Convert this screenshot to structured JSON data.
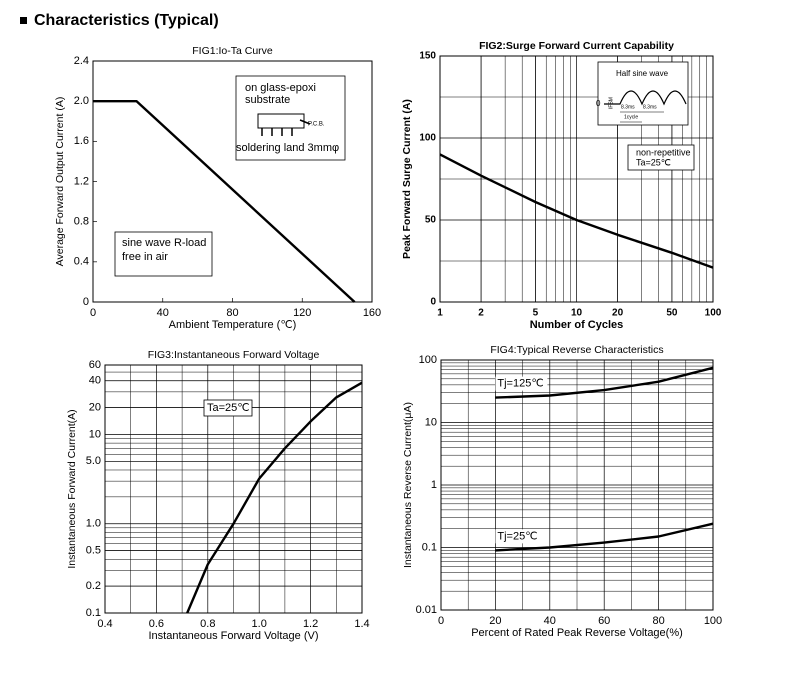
{
  "title": "Characteristics (Typical)",
  "chart_data": [
    {
      "type": "line",
      "title": "FIG1:Io-Ta Curve",
      "x_label": "Ambient Temperature (℃)",
      "y_label": "Average Forward Output Current (A)",
      "x": [
        0,
        25,
        150
      ],
      "values": [
        2,
        2,
        0
      ],
      "color": "#000000",
      "xlim": [
        0,
        160
      ],
      "xticks": [
        0,
        40,
        80,
        120,
        160
      ],
      "ylim": [
        0,
        2.4
      ],
      "yticks": [
        0,
        0.4,
        0.8,
        1.2,
        1.6,
        {
          "value": 2,
          "label": "2.0"
        },
        2.4
      ],
      "grid": false,
      "annotations": [
        "on glass-epoxi",
        "substrate",
        "P.C.B.",
        "soldering land 3mmφ",
        "sine wave R-load",
        "free in air"
      ]
    },
    {
      "type": "line",
      "title": "FIG2:Surge Forward Current Capability",
      "x_label": "Number of Cycles",
      "y_label": "Peak Forward Surge Current (A)",
      "x": [
        1,
        2,
        5,
        10,
        20,
        50,
        100
      ],
      "values": [
        90,
        77,
        61,
        50,
        41,
        30,
        21
      ],
      "color": "#000000",
      "xscale": "log",
      "xlim": [
        1,
        100
      ],
      "xticks": [
        1,
        2,
        5,
        10,
        20,
        50,
        100
      ],
      "ylim": [
        0,
        150
      ],
      "yticks": [
        0,
        50,
        100,
        150
      ],
      "grid": true,
      "annotations": [
        "Half sine wave",
        "IFSM",
        "0",
        "8.3ms",
        "8.3ms",
        "1cycle",
        "non-repetitive",
        "Ta=25℃"
      ]
    },
    {
      "type": "line",
      "title": "FIG3:Instantaneous Forward Voltage",
      "x_label": "Instantaneous Forward Voltage (V)",
      "y_label": "Instantaneous Forward Current(A)",
      "x": [
        0.72,
        0.8,
        0.9,
        1.0,
        1.1,
        1.2,
        1.3,
        1.4
      ],
      "values": [
        0.1,
        0.35,
        1,
        3.2,
        7,
        14,
        26,
        38
      ],
      "color": "#000000",
      "xlim": [
        0.4,
        1.4
      ],
      "xticks": [
        0.4,
        0.6,
        0.8,
        {
          "value": 1,
          "label": "1.0"
        },
        1.2,
        1.4
      ],
      "yscale": "log",
      "ylim": [
        0.1,
        60
      ],
      "yticks": [
        0.1,
        0.2,
        0.5,
        {
          "value": 1,
          "label": "1.0"
        },
        {
          "value": 5,
          "label": "5.0"
        },
        10,
        20,
        40,
        60
      ],
      "grid": true,
      "annotations": [
        "Ta=25℃"
      ]
    },
    {
      "type": "line",
      "title": "FIG4:Typical Reverse Characteristics",
      "x_label": "Percent of Rated Peak Reverse Voltage(%)",
      "y_label": "Instantaneous Reverse Current(μA)",
      "x": [
        20,
        40,
        60,
        80,
        100
      ],
      "series": [
        {
          "name": "Tj=125℃",
          "color": "#000000",
          "values": [
            25,
            27,
            33,
            45,
            75
          ]
        },
        {
          "name": "Tj=25℃",
          "color": "#000000",
          "values": [
            0.09,
            0.1,
            0.12,
            0.15,
            0.24
          ]
        }
      ],
      "xlim": [
        0,
        100
      ],
      "xticks": [
        0,
        20,
        40,
        60,
        80,
        100
      ],
      "yscale": "log",
      "ylim": [
        0.01,
        100
      ],
      "yticks": [
        0.01,
        0.1,
        1,
        10,
        100
      ],
      "grid": true
    }
  ]
}
